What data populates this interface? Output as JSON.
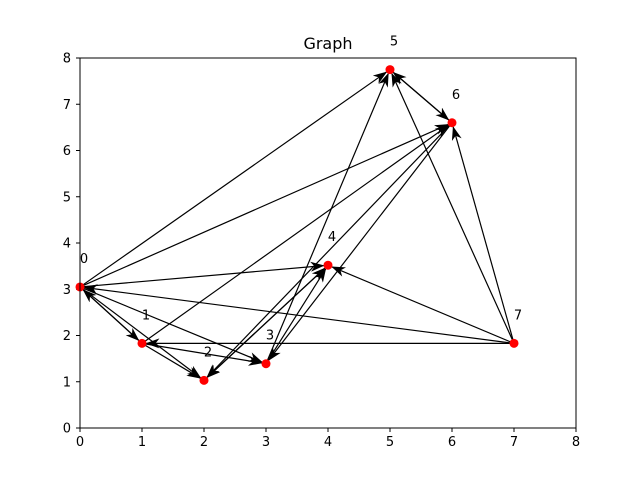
{
  "chart_data": {
    "type": "scatter",
    "title": "Graph",
    "xlabel": "",
    "ylabel": "",
    "xlim": [
      0,
      8
    ],
    "ylim": [
      0,
      8
    ],
    "xticks": [
      "0",
      "1",
      "2",
      "3",
      "4",
      "5",
      "6",
      "7",
      "8"
    ],
    "yticks": [
      "0",
      "1",
      "2",
      "3",
      "4",
      "5",
      "6",
      "7",
      "8"
    ],
    "grid": false,
    "node_color": "#ff0000",
    "edge_color": "#000000",
    "nodes": [
      {
        "id": "0",
        "x": 0.0,
        "y": 3.05
      },
      {
        "id": "1",
        "x": 1.0,
        "y": 1.83
      },
      {
        "id": "2",
        "x": 2.0,
        "y": 1.03
      },
      {
        "id": "3",
        "x": 3.0,
        "y": 1.39
      },
      {
        "id": "4",
        "x": 4.0,
        "y": 3.52
      },
      {
        "id": "5",
        "x": 5.0,
        "y": 7.75
      },
      {
        "id": "6",
        "x": 6.0,
        "y": 6.6
      },
      {
        "id": "7",
        "x": 7.0,
        "y": 1.83
      }
    ],
    "edges": [
      {
        "from": "0",
        "to": "1"
      },
      {
        "from": "0",
        "to": "2"
      },
      {
        "from": "0",
        "to": "3"
      },
      {
        "from": "0",
        "to": "4"
      },
      {
        "from": "0",
        "to": "5"
      },
      {
        "from": "0",
        "to": "6"
      },
      {
        "from": "1",
        "to": "0"
      },
      {
        "from": "1",
        "to": "2"
      },
      {
        "from": "1",
        "to": "3"
      },
      {
        "from": "1",
        "to": "6"
      },
      {
        "from": "2",
        "to": "4"
      },
      {
        "from": "3",
        "to": "4"
      },
      {
        "from": "3",
        "to": "5"
      },
      {
        "from": "4",
        "to": "2"
      },
      {
        "from": "5",
        "to": "6"
      },
      {
        "from": "6",
        "to": "2"
      },
      {
        "from": "6",
        "to": "3"
      },
      {
        "from": "6",
        "to": "5"
      },
      {
        "from": "7",
        "to": "0"
      },
      {
        "from": "7",
        "to": "1"
      },
      {
        "from": "7",
        "to": "4"
      },
      {
        "from": "7",
        "to": "5"
      },
      {
        "from": "7",
        "to": "6"
      }
    ]
  }
}
